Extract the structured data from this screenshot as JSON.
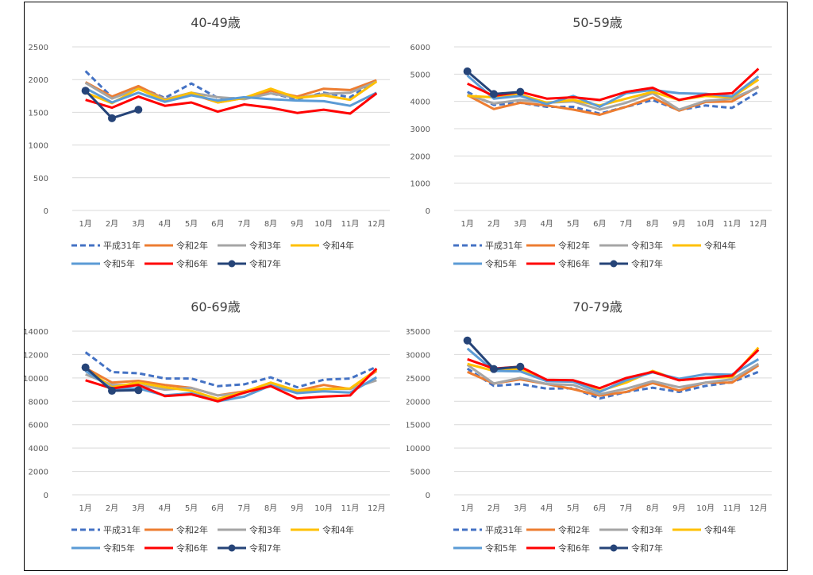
{
  "months": [
    "1月",
    "2月",
    "3月",
    "4月",
    "5月",
    "6月",
    "7月",
    "8月",
    "9月",
    "10月",
    "11月",
    "12月"
  ],
  "series_meta": [
    {
      "name": "平成31年",
      "color": "#4472C4",
      "dash": true,
      "marker": false,
      "width": 3
    },
    {
      "name": "令和2年",
      "color": "#ED7D31",
      "dash": false,
      "marker": false,
      "width": 3
    },
    {
      "name": "令和3年",
      "color": "#A5A5A5",
      "dash": false,
      "marker": false,
      "width": 3
    },
    {
      "name": "令和4年",
      "color": "#FFC000",
      "dash": false,
      "marker": false,
      "width": 3
    },
    {
      "name": "令和5年",
      "color": "#5B9BD5",
      "dash": false,
      "marker": false,
      "width": 3
    },
    {
      "name": "令和6年",
      "color": "#FF0000",
      "dash": false,
      "marker": false,
      "width": 3
    },
    {
      "name": "令和7年",
      "color": "#264478",
      "dash": false,
      "marker": true,
      "width": 3
    }
  ],
  "chart_data": [
    {
      "type": "line",
      "title": "40-49歳",
      "ylim": [
        0,
        2500
      ],
      "yticks": [
        0,
        500,
        1000,
        1500,
        2000,
        2500
      ],
      "series": [
        {
          "name": "平成31年",
          "values": [
            2130,
            1730,
            1890,
            1720,
            1940,
            1720,
            1710,
            1790,
            1700,
            1800,
            1730,
            1990
          ]
        },
        {
          "name": "令和2年",
          "values": [
            1960,
            1740,
            1900,
            1700,
            1780,
            1650,
            1720,
            1830,
            1740,
            1860,
            1840,
            1990
          ]
        },
        {
          "name": "令和3年",
          "values": [
            1950,
            1710,
            1860,
            1700,
            1800,
            1730,
            1700,
            1790,
            1720,
            1780,
            1800,
            1970
          ]
        },
        {
          "name": "令和4年",
          "values": [
            1800,
            1640,
            1860,
            1680,
            1800,
            1650,
            1720,
            1860,
            1720,
            1760,
            1690,
            1970
          ]
        },
        {
          "name": "令和5年",
          "values": [
            1870,
            1650,
            1800,
            1660,
            1760,
            1680,
            1730,
            1700,
            1680,
            1670,
            1600,
            1800
          ]
        },
        {
          "name": "令和6年",
          "values": [
            1690,
            1570,
            1740,
            1600,
            1650,
            1510,
            1620,
            1570,
            1490,
            1540,
            1480,
            1790
          ]
        },
        {
          "name": "令和7年",
          "values": [
            1830,
            1410,
            1540,
            null,
            null,
            null,
            null,
            null,
            null,
            null,
            null,
            null
          ]
        }
      ]
    },
    {
      "type": "line",
      "title": "50-59歳",
      "ylim": [
        0,
        6000
      ],
      "yticks": [
        0,
        1000,
        2000,
        3000,
        4000,
        5000,
        6000
      ],
      "series": [
        {
          "name": "平成31年",
          "values": [
            4350,
            3870,
            3950,
            3800,
            3800,
            3550,
            3800,
            4050,
            3680,
            3850,
            3760,
            4350
          ]
        },
        {
          "name": "令和2年",
          "values": [
            4230,
            3720,
            3950,
            3850,
            3700,
            3510,
            3800,
            4140,
            3660,
            3980,
            4000,
            4550
          ]
        },
        {
          "name": "令和3年",
          "values": [
            4250,
            3920,
            4050,
            3950,
            4000,
            3700,
            3950,
            4300,
            3700,
            4020,
            4100,
            4520
          ]
        },
        {
          "name": "令和4年",
          "values": [
            4200,
            4150,
            4250,
            3950,
            4050,
            3850,
            4100,
            4350,
            4050,
            4200,
            4150,
            4800
          ]
        },
        {
          "name": "令和5年",
          "values": [
            4950,
            4100,
            4200,
            3900,
            4200,
            3800,
            4300,
            4420,
            4300,
            4280,
            4180,
            4920
          ]
        },
        {
          "name": "令和6年",
          "values": [
            4650,
            4200,
            4350,
            4100,
            4150,
            4050,
            4350,
            4500,
            4050,
            4250,
            4300,
            5200
          ]
        },
        {
          "name": "令和7年",
          "values": [
            5100,
            4270,
            4350,
            null,
            null,
            null,
            null,
            null,
            null,
            null,
            null,
            null
          ]
        }
      ]
    },
    {
      "type": "line",
      "title": "60-69歳",
      "ylim": [
        0,
        14000
      ],
      "yticks": [
        0,
        2000,
        4000,
        6000,
        8000,
        10000,
        12000,
        14000
      ],
      "series": [
        {
          "name": "平成31年",
          "values": [
            12200,
            10500,
            10400,
            9950,
            9950,
            9300,
            9450,
            10050,
            9200,
            9850,
            9950,
            10950
          ]
        },
        {
          "name": "令和2年",
          "values": [
            10850,
            9600,
            9750,
            9400,
            9150,
            8500,
            8850,
            9450,
            8900,
            9400,
            9050,
            10600
          ]
        },
        {
          "name": "令和3年",
          "values": [
            10300,
            9400,
            9400,
            9000,
            9150,
            8500,
            8700,
            9500,
            8800,
            9050,
            9050,
            9800
          ]
        },
        {
          "name": "令和4年",
          "values": [
            10800,
            9200,
            9600,
            9200,
            8900,
            8200,
            8800,
            9600,
            8900,
            9050,
            9100,
            10700
          ]
        },
        {
          "name": "令和5年",
          "values": [
            10600,
            9100,
            9100,
            8500,
            8700,
            8000,
            8400,
            9350,
            8700,
            8850,
            8750,
            10050
          ]
        },
        {
          "name": "令和6年",
          "values": [
            9800,
            9100,
            9400,
            8450,
            8600,
            8000,
            8750,
            9300,
            8250,
            8400,
            8500,
            10800
          ]
        },
        {
          "name": "令和7年",
          "values": [
            10900,
            8900,
            8950,
            null,
            null,
            null,
            null,
            null,
            null,
            null,
            null,
            null
          ]
        }
      ]
    },
    {
      "type": "line",
      "title": "70-79歳",
      "ylim": [
        0,
        35000
      ],
      "yticks": [
        0,
        5000,
        10000,
        15000,
        20000,
        25000,
        30000,
        35000
      ],
      "series": [
        {
          "name": "平成31年",
          "values": [
            27000,
            23300,
            23700,
            22700,
            22800,
            20600,
            22000,
            22900,
            22000,
            23300,
            24100,
            26300
          ]
        },
        {
          "name": "令和2年",
          "values": [
            26300,
            23800,
            24700,
            23700,
            22600,
            21200,
            22000,
            23900,
            22300,
            24000,
            24000,
            27700
          ]
        },
        {
          "name": "令和3年",
          "values": [
            27800,
            23800,
            25000,
            23700,
            23500,
            21500,
            22700,
            24300,
            23000,
            24000,
            24700,
            28000
          ]
        },
        {
          "name": "令和4年",
          "values": [
            28000,
            26500,
            27000,
            24500,
            24200,
            22200,
            24000,
            26500,
            24500,
            25000,
            25200,
            31500
          ]
        },
        {
          "name": "令和5年",
          "values": [
            31300,
            26500,
            26400,
            24300,
            24200,
            22000,
            24500,
            26200,
            24800,
            25800,
            25700,
            29000
          ]
        },
        {
          "name": "令和6年",
          "values": [
            29000,
            27000,
            27400,
            24600,
            24500,
            22800,
            25000,
            26300,
            24500,
            25000,
            25500,
            31000
          ]
        },
        {
          "name": "令和7年",
          "values": [
            33000,
            26900,
            27400,
            null,
            null,
            null,
            null,
            null,
            null,
            null,
            null,
            null
          ]
        }
      ]
    }
  ]
}
